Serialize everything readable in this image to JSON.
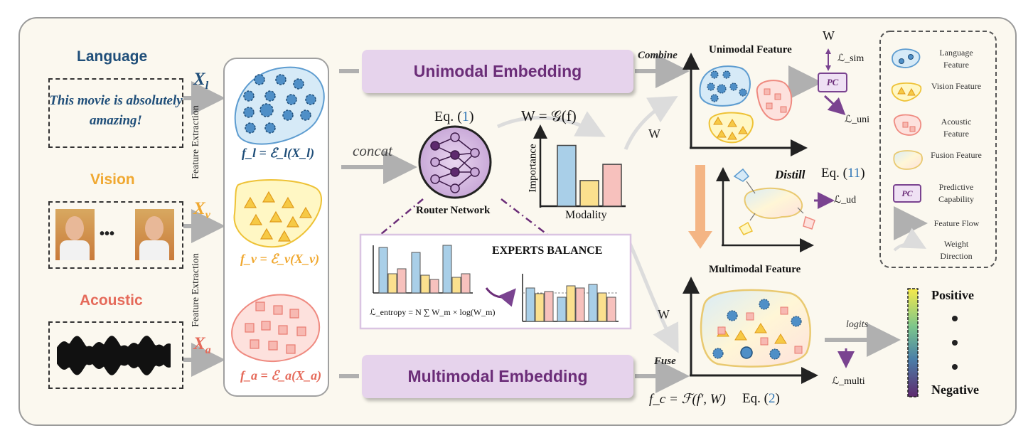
{
  "modalities": {
    "language": {
      "title": "Language",
      "text": "This movie is absolutely amazing!",
      "input_var": "X",
      "input_sub": "l",
      "feature_eq": "f_l = ℰ_l(X_l)",
      "color": "#1f4e79"
    },
    "vision": {
      "title": "Vision",
      "input_var": "X",
      "input_sub": "v",
      "feature_eq": "f_v = ℰ_v(X_v)",
      "color": "#f0a830",
      "ellipsis": "•••"
    },
    "acoustic": {
      "title": "Acoustic",
      "input_var": "X",
      "input_sub": "a",
      "feature_eq": "f_a = ℰ_a(X_a)",
      "color": "#e56a5a"
    }
  },
  "feature_extraction_label": "Feature Extraction",
  "unimodal_embedding": "Unimodal Embedding",
  "multimodal_embedding": "Multimodal Embedding",
  "concat_label": "concat",
  "router": {
    "eq_prefix": "Eq. (",
    "eq_num": "1",
    "eq_suffix": ")",
    "label": "Router Network"
  },
  "weight_eq": "W = 𝒢(f)",
  "importance_chart": {
    "ylabel": "Importance",
    "xlabel": "Modality",
    "bars": [
      {
        "name": "Language",
        "value": 0.9,
        "color": "#a9cfe8"
      },
      {
        "name": "Vision",
        "value": 0.38,
        "color": "#fbe08e"
      },
      {
        "name": "Acoustic",
        "value": 0.62,
        "color": "#f7c1bd"
      }
    ]
  },
  "experts_balance": {
    "title": "EXPERTS BALANCE",
    "entropy_eq": "ℒ_entropy = N ∑ W_m × log(W_m)"
  },
  "combine_label": "Combine",
  "fuse_label": "Fuse",
  "w_label": "W",
  "unimodal_feature": {
    "title": "Unimodal Feature",
    "w": "W",
    "sim_loss": "ℒ_sim",
    "pc": "PC",
    "uni_loss": "ℒ_uni"
  },
  "distill": {
    "label": "Distill",
    "eq_prefix": "Eq. (",
    "eq_num": "11",
    "eq_suffix": ")",
    "loss": "ℒ_ud"
  },
  "multimodal_feature": {
    "title": "Multimodal Feature",
    "fuse_eq": "f_c = ℱ(f′, W)",
    "eq_prefix": "Eq. (",
    "eq_num": "2",
    "eq_suffix": ")"
  },
  "logits_label": "logits",
  "multi_loss": "ℒ_multi",
  "sentiment": {
    "positive": "Positive",
    "negative": "Negative"
  },
  "legend": [
    {
      "label": "Language Feature"
    },
    {
      "label": "Vision Feature"
    },
    {
      "label": "Acoustic Feature"
    },
    {
      "label": "Fusion Feature"
    },
    {
      "label": "Predictive Capability",
      "badge": "PC"
    },
    {
      "label": "Feature Flow"
    },
    {
      "label": "Weight Direction"
    }
  ],
  "colors": {
    "language": "#1f4e79",
    "vision": "#f0a830",
    "acoustic": "#e56a5a",
    "purple": "#6b2d78",
    "eq_blue": "#2e75b6",
    "arrow": "#b0b0b0"
  }
}
